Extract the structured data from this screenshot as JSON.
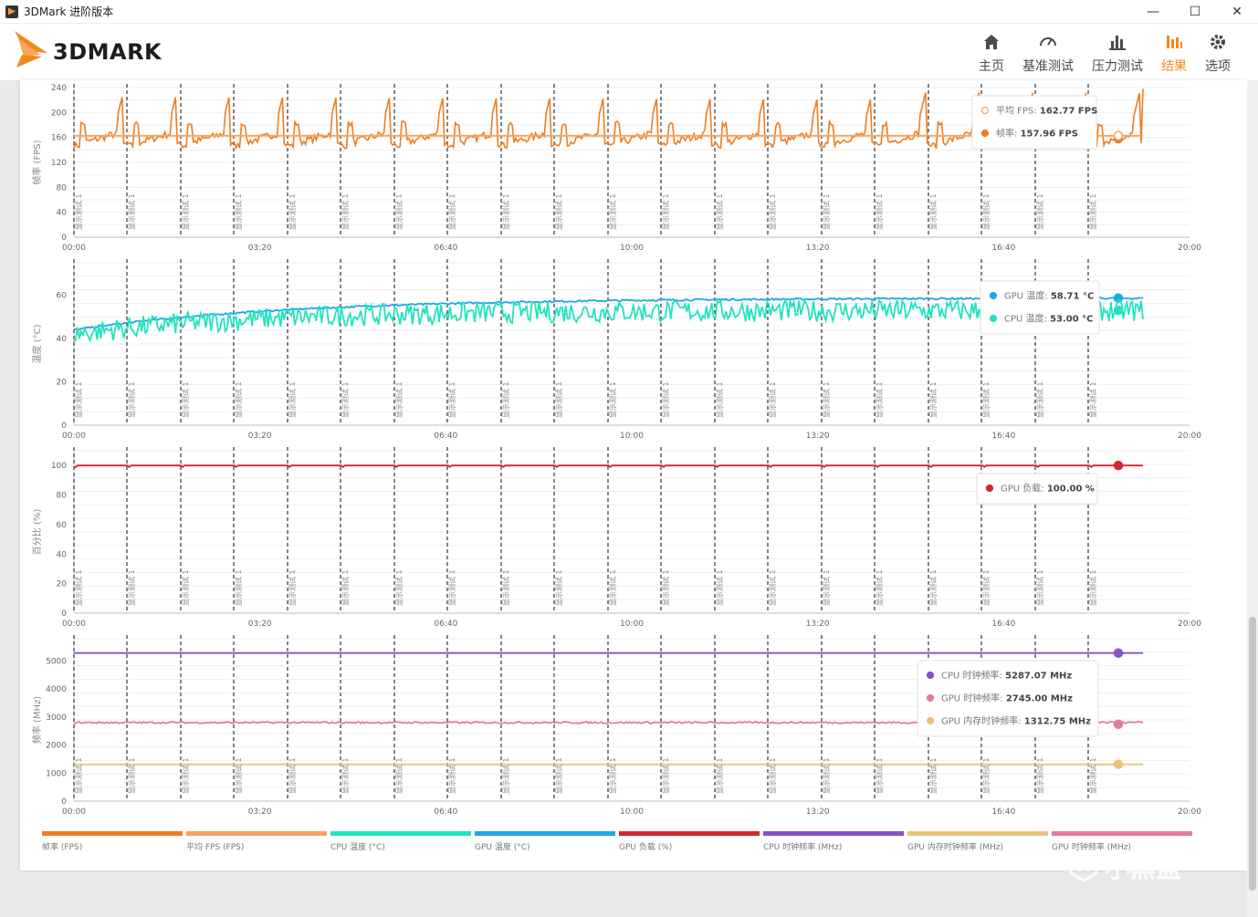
{
  "window": {
    "title": "3DMark 进阶版本",
    "minimize": "—",
    "maximize": "☐",
    "close": "✕"
  },
  "logo": {
    "text": "3DMARK"
  },
  "nav": [
    {
      "label": "主页",
      "icon": "home-icon",
      "active": false
    },
    {
      "label": "基准测试",
      "icon": "gauge-icon",
      "active": false
    },
    {
      "label": "压力测试",
      "icon": "bar-chart-icon",
      "active": false
    },
    {
      "label": "结果",
      "icon": "results-icon",
      "active": true
    },
    {
      "label": "选项",
      "icon": "gear-icon",
      "active": false
    }
  ],
  "colors": {
    "fps": "#ee7d22",
    "avg_fps": "#f5a35e",
    "cpu_temp": "#22e3c0",
    "gpu_temp": "#1ea7e8",
    "gpu_load": "#d4262e",
    "cpu_clock": "#8b4fc6",
    "gpu_mem_clock": "#ecc27e",
    "gpu_clock": "#e47aa0"
  },
  "chart_data": [
    {
      "type": "line",
      "ylabel": "帧率 (FPS)",
      "ylim": [
        0,
        240
      ],
      "yticks": [
        0,
        40,
        80,
        120,
        160,
        200,
        240
      ],
      "xticks": [
        "00:00",
        "03:20",
        "06:40",
        "10:00",
        "13:20",
        "16:40",
        "20:00"
      ],
      "x_range_seconds": [
        0,
        1200
      ],
      "loop_label": "显示测试 1",
      "loop_count": 20,
      "series": [
        {
          "name": "帧率",
          "color": "fps",
          "pattern": "sawtooth",
          "base": 150,
          "peak": 232,
          "last": 157.96
        },
        {
          "name": "平均 FPS",
          "color": "avg_fps",
          "pattern": "flat",
          "base": 162.77
        }
      ],
      "legend": [
        {
          "label": "平均 FPS: ",
          "value": "162.77 FPS",
          "color": "avg_fps",
          "hollow": true
        },
        {
          "label": "帧率: ",
          "value": "157.96 FPS",
          "color": "fps",
          "hollow": false
        }
      ]
    },
    {
      "type": "line",
      "ylabel": "温度 (°C)",
      "ylim": [
        0,
        75
      ],
      "yticks": [
        0,
        20,
        40,
        60
      ],
      "xticks": [
        "00:00",
        "03:20",
        "06:40",
        "10:00",
        "13:20",
        "16:40",
        "20:00"
      ],
      "x_range_seconds": [
        0,
        1200
      ],
      "loop_label": "显示测试 1",
      "loop_count": 20,
      "series": [
        {
          "name": "GPU 温度",
          "color": "gpu_temp",
          "pattern": "rise",
          "start": 44,
          "end": 58.71
        },
        {
          "name": "CPU 温度",
          "color": "cpu_temp",
          "pattern": "noisy-rise",
          "start": 42,
          "end": 53.0
        }
      ],
      "legend": [
        {
          "label": "GPU 温度: ",
          "value": "58.71 °C",
          "color": "gpu_temp",
          "hollow": false
        },
        {
          "label": "CPU 温度: ",
          "value": "53.00 °C",
          "color": "cpu_temp",
          "hollow": false
        }
      ]
    },
    {
      "type": "line",
      "ylabel": "百分比 (%)",
      "ylim": [
        0,
        110
      ],
      "yticks": [
        0,
        20,
        40,
        60,
        80,
        100
      ],
      "xticks": [
        "00:00",
        "03:20",
        "06:40",
        "10:00",
        "13:20",
        "16:40",
        "20:00"
      ],
      "x_range_seconds": [
        0,
        1200
      ],
      "loop_label": "显示测试 1",
      "loop_count": 20,
      "series": [
        {
          "name": "GPU 负载",
          "color": "gpu_load",
          "pattern": "flat-dips",
          "base": 100.0
        }
      ],
      "legend": [
        {
          "label": "GPU 负载: ",
          "value": "100.00 %",
          "color": "gpu_load",
          "hollow": false
        }
      ]
    },
    {
      "type": "line",
      "ylabel": "频率 (MHz)",
      "ylim": [
        0,
        5800
      ],
      "yticks": [
        0,
        1000,
        2000,
        3000,
        4000,
        5000
      ],
      "xticks": [
        "00:00",
        "03:20",
        "06:40",
        "10:00",
        "13:20",
        "16:40",
        "20:00"
      ],
      "x_range_seconds": [
        0,
        1200
      ],
      "loop_label": "显示测试 1",
      "loop_count": 20,
      "series": [
        {
          "name": "CPU 时钟频率",
          "color": "cpu_clock",
          "pattern": "flat",
          "base": 5287.07
        },
        {
          "name": "GPU 时钟频率",
          "color": "gpu_clock",
          "pattern": "flat-noise",
          "base": 2745.0
        },
        {
          "name": "GPU 内存时钟频率",
          "color": "gpu_mem_clock",
          "pattern": "flat",
          "base": 1312.75
        }
      ],
      "legend": [
        {
          "label": "CPU 时钟频率: ",
          "value": "5287.07 MHz",
          "color": "cpu_clock",
          "hollow": false
        },
        {
          "label": "GPU 时钟频率: ",
          "value": "2745.00 MHz",
          "color": "gpu_clock",
          "hollow": false
        },
        {
          "label": "GPU 内存时钟频率: ",
          "value": "1312.75 MHz",
          "color": "gpu_mem_clock",
          "hollow": false
        }
      ]
    }
  ],
  "bottom_legend": [
    {
      "label": "帧率 (FPS)",
      "color": "fps"
    },
    {
      "label": "平均 FPS (FPS)",
      "color": "avg_fps"
    },
    {
      "label": "CPU 温度 (°C)",
      "color": "cpu_temp"
    },
    {
      "label": "GPU 温度 (°C)",
      "color": "gpu_temp"
    },
    {
      "label": "GPU 负载 (%)",
      "color": "gpu_load"
    },
    {
      "label": "CPU 时钟频率 (MHz)",
      "color": "cpu_clock"
    },
    {
      "label": "GPU 内存时钟频率 (MHz)",
      "color": "gpu_mem_clock"
    },
    {
      "label": "GPU 时钟频率 (MHz)",
      "color": "gpu_clock"
    }
  ],
  "watermark": {
    "text": "小黑盒"
  }
}
